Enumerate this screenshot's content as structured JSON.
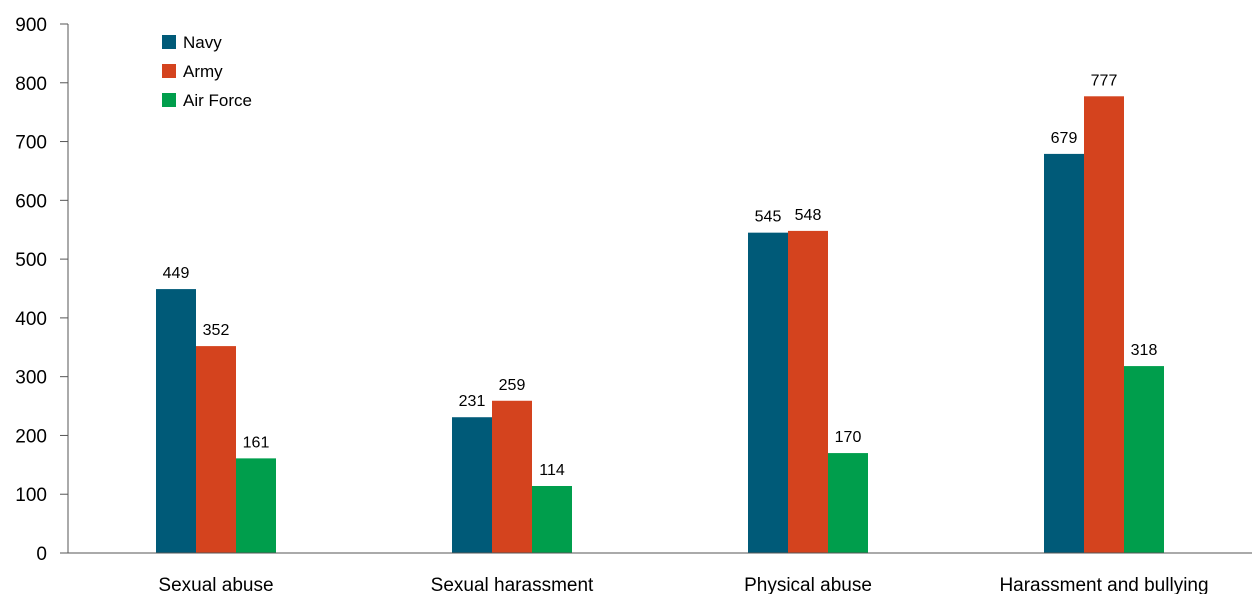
{
  "chart_data": {
    "type": "bar",
    "categories": [
      "Sexual abuse",
      "Sexual harassment",
      "Physical abuse",
      "Harassment and bullying"
    ],
    "series": [
      {
        "name": "Navy",
        "color": "#005a78",
        "values": [
          449,
          231,
          545,
          679
        ]
      },
      {
        "name": "Army",
        "color": "#d4431e",
        "values": [
          352,
          259,
          548,
          777
        ]
      },
      {
        "name": "Air Force",
        "color": "#009e4c",
        "values": [
          161,
          114,
          170,
          318
        ]
      }
    ],
    "ylim": [
      0,
      900
    ],
    "yticks": [
      0,
      100,
      200,
      300,
      400,
      500,
      600,
      700,
      800,
      900
    ],
    "grid": false,
    "legend": "top-left",
    "data_labels": true
  }
}
